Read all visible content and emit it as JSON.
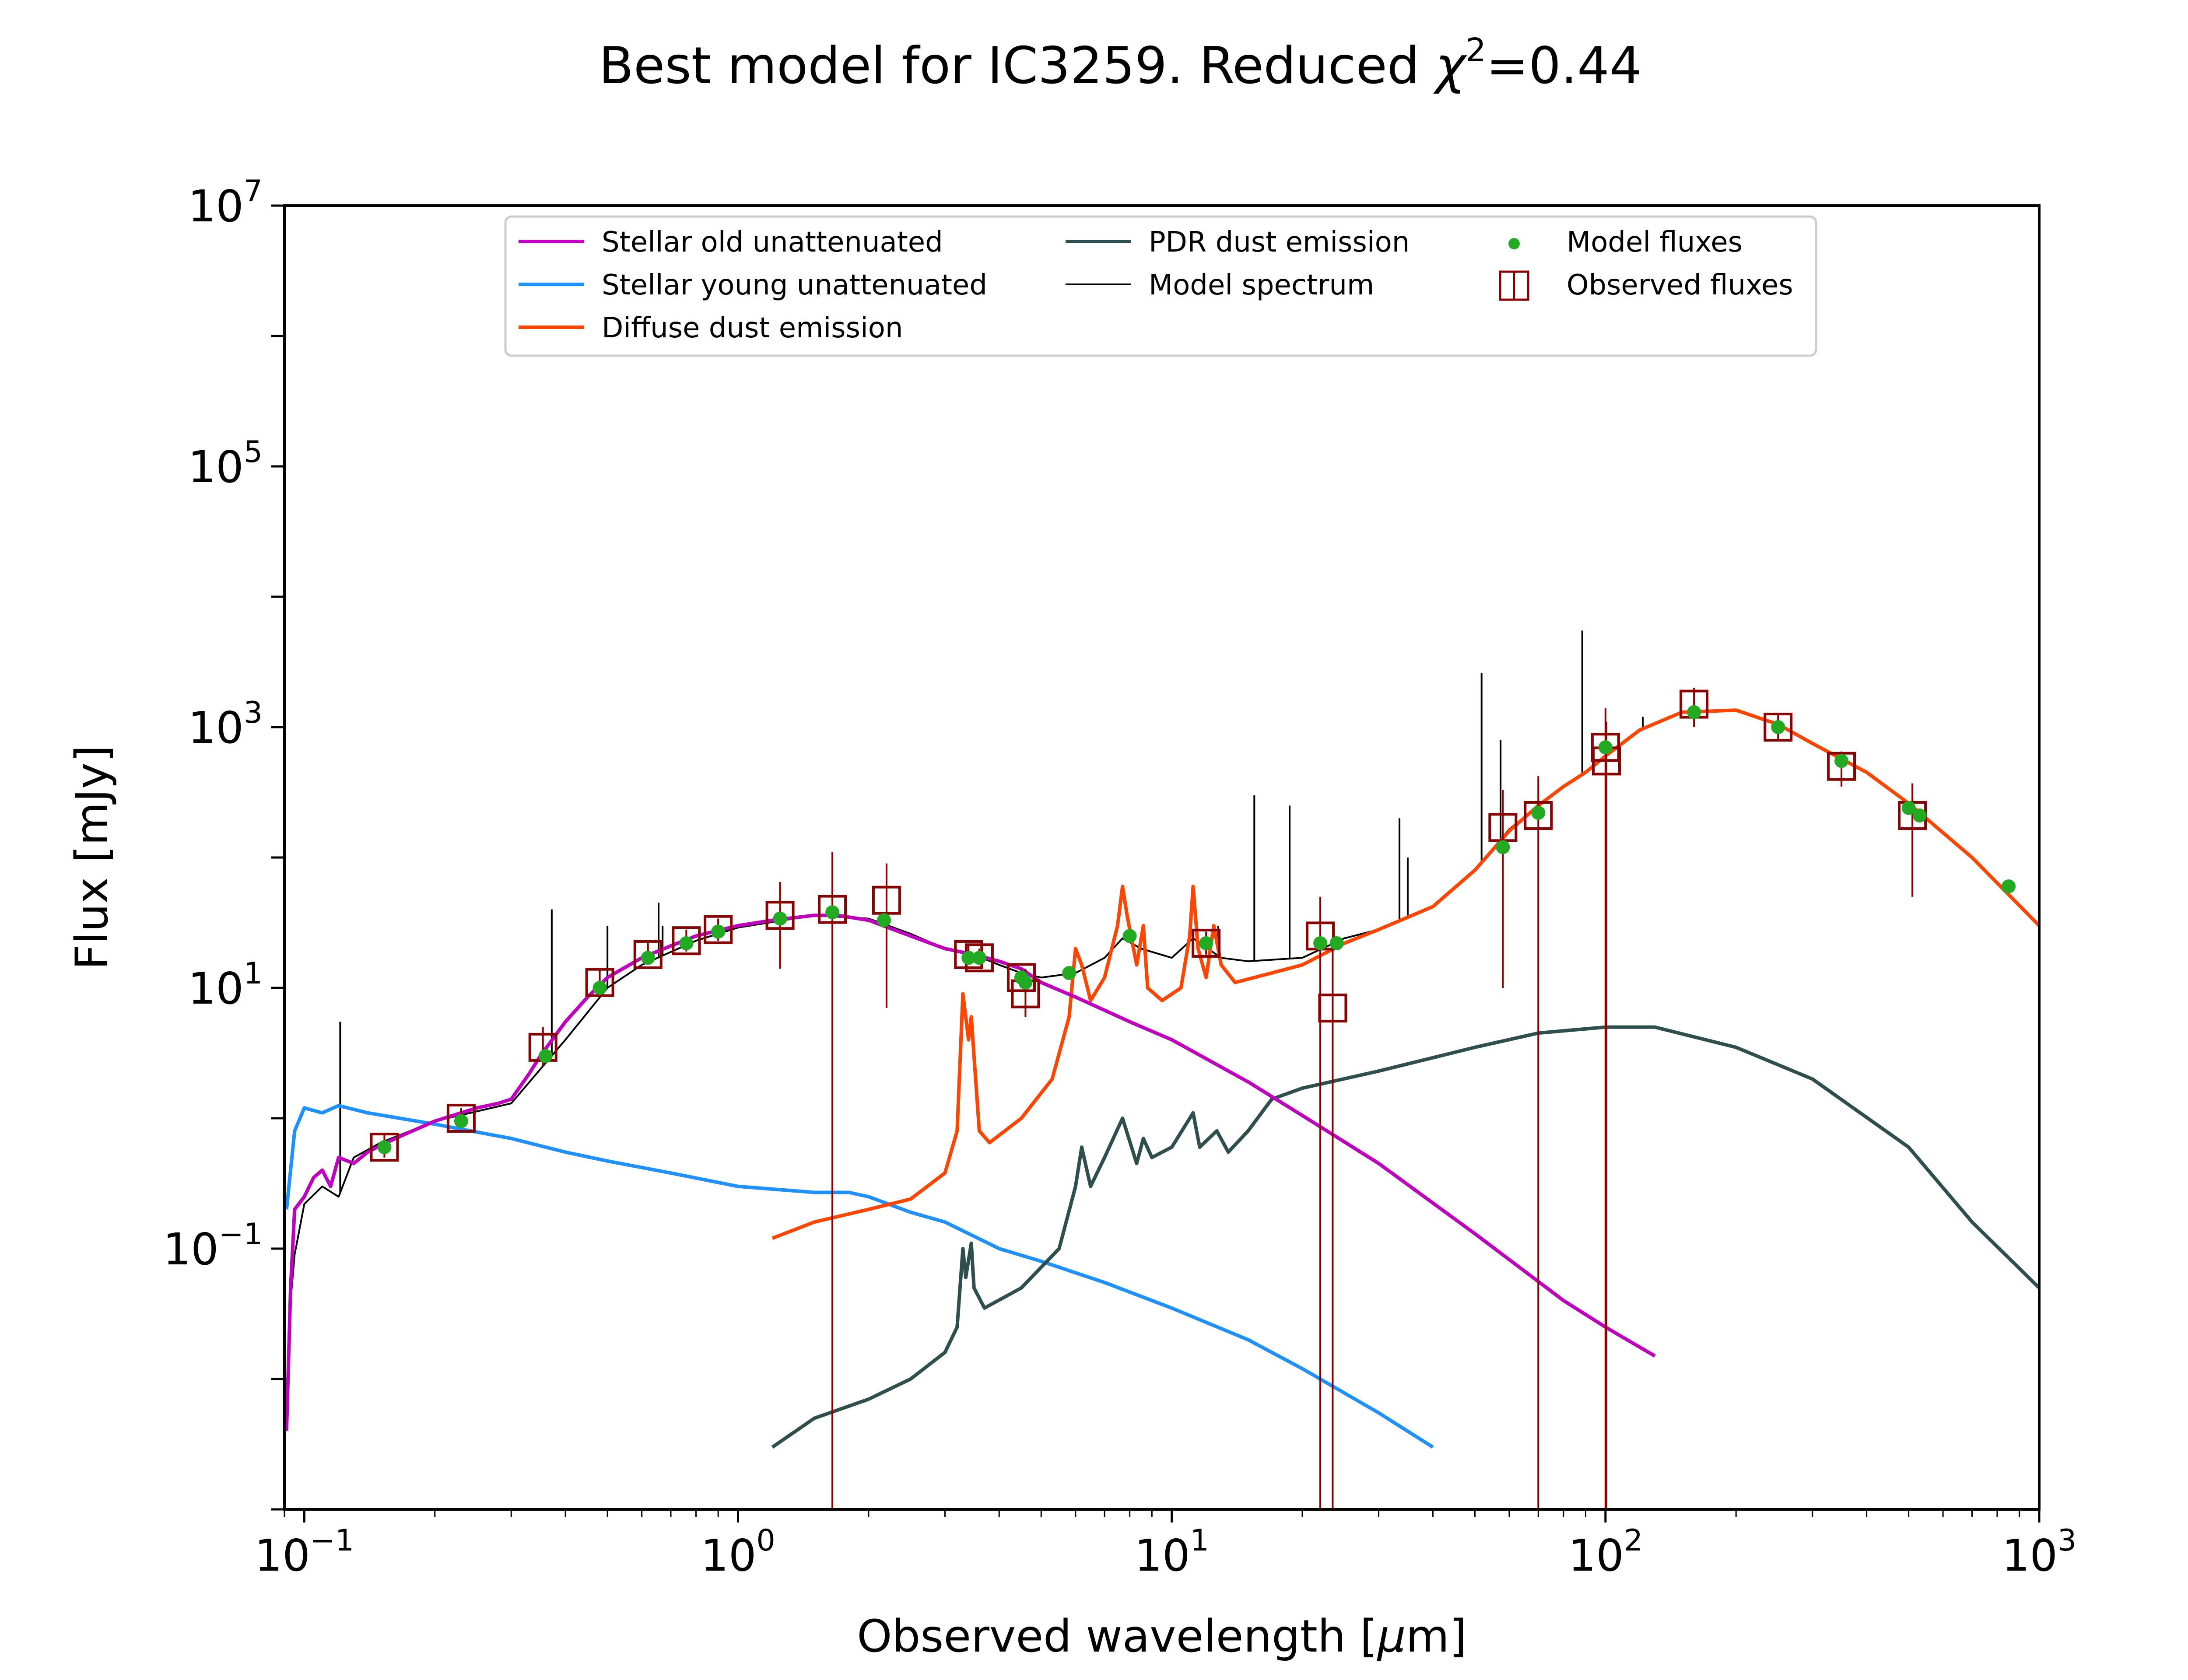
{
  "chart_data": {
    "type": "line",
    "title": "Best model for IC3259. Reduced χ²=0.44",
    "title_main": "Best model for IC3259. Reduced ",
    "title_chi": "χ",
    "title_exp": "2",
    "title_end": "=0.44",
    "xlabel_pre": "Observed wavelength [",
    "xlabel_mu": "μ",
    "xlabel_post": "m]",
    "ylabel": "Flux [mJy]",
    "x_scale": "log",
    "y_scale": "log",
    "xlim": [
      0.09,
      1000
    ],
    "ylim": [
      0.001,
      10000000
    ],
    "grid": false,
    "legend_position": "upper-center",
    "x_ticks": [
      {
        "value": 0.1,
        "base": "10",
        "exp": "−1"
      },
      {
        "value": 1,
        "base": "10",
        "exp": "0"
      },
      {
        "value": 10,
        "base": "10",
        "exp": "1"
      },
      {
        "value": 100,
        "base": "10",
        "exp": "2"
      },
      {
        "value": 1000,
        "base": "10",
        "exp": "3"
      }
    ],
    "y_ticks": [
      {
        "value": 0.1,
        "base": "10",
        "exp": "−1"
      },
      {
        "value": 10,
        "base": "10",
        "exp": "1"
      },
      {
        "value": 1000,
        "base": "10",
        "exp": "3"
      },
      {
        "value": 100000,
        "base": "10",
        "exp": "5"
      },
      {
        "value": 10000000,
        "base": "10",
        "exp": "7"
      }
    ],
    "series": [
      {
        "name": "Stellar old unattenuated",
        "color": "#bf00bf",
        "points": [
          [
            0.091,
            0.004
          ],
          [
            0.093,
            0.05
          ],
          [
            0.095,
            0.2
          ],
          [
            0.1,
            0.25
          ],
          [
            0.105,
            0.35
          ],
          [
            0.11,
            0.4
          ],
          [
            0.115,
            0.3
          ],
          [
            0.12,
            0.5
          ],
          [
            0.13,
            0.45
          ],
          [
            0.14,
            0.55
          ],
          [
            0.15,
            0.62
          ],
          [
            0.17,
            0.75
          ],
          [
            0.2,
            0.95
          ],
          [
            0.25,
            1.2
          ],
          [
            0.28,
            1.3
          ],
          [
            0.3,
            1.4
          ],
          [
            0.33,
            2.2
          ],
          [
            0.35,
            3.0
          ],
          [
            0.4,
            5.5
          ],
          [
            0.45,
            8.5
          ],
          [
            0.5,
            12
          ],
          [
            0.6,
            17
          ],
          [
            0.7,
            21
          ],
          [
            0.8,
            25
          ],
          [
            1.0,
            30
          ],
          [
            1.2,
            33
          ],
          [
            1.5,
            36
          ],
          [
            1.7,
            36
          ],
          [
            2.0,
            33
          ],
          [
            2.5,
            25
          ],
          [
            3.0,
            20
          ],
          [
            3.5,
            18
          ],
          [
            4.0,
            16
          ],
          [
            4.5,
            14
          ],
          [
            5.0,
            11
          ],
          [
            6.0,
            8.5
          ],
          [
            8.0,
            5.5
          ],
          [
            10.0,
            4
          ],
          [
            15.0,
            1.9
          ],
          [
            20.0,
            1.05
          ],
          [
            30.0,
            0.45
          ],
          [
            50.0,
            0.13
          ],
          [
            80.0,
            0.04
          ],
          [
            100.0,
            0.025
          ],
          [
            130.0,
            0.015
          ]
        ]
      },
      {
        "name": "Stellar young unattenuated",
        "color": "#1e90ff",
        "points": [
          [
            0.091,
            0.2
          ],
          [
            0.095,
            0.8
          ],
          [
            0.1,
            1.2
          ],
          [
            0.11,
            1.1
          ],
          [
            0.12,
            1.25
          ],
          [
            0.14,
            1.1
          ],
          [
            0.2,
            0.9
          ],
          [
            0.3,
            0.7
          ],
          [
            0.4,
            0.55
          ],
          [
            0.5,
            0.47
          ],
          [
            0.7,
            0.38
          ],
          [
            1.0,
            0.3
          ],
          [
            1.5,
            0.27
          ],
          [
            1.8,
            0.27
          ],
          [
            2.0,
            0.25
          ],
          [
            2.5,
            0.19
          ],
          [
            3.0,
            0.16
          ],
          [
            4.0,
            0.1
          ],
          [
            5.0,
            0.08
          ],
          [
            7.0,
            0.055
          ],
          [
            10.0,
            0.035
          ],
          [
            15.0,
            0.02
          ],
          [
            20.0,
            0.012
          ],
          [
            30.0,
            0.0055
          ],
          [
            40.0,
            0.003
          ]
        ]
      },
      {
        "name": "Diffuse dust emission",
        "color": "#ff4500",
        "points": [
          [
            1.2,
            0.12
          ],
          [
            1.5,
            0.16
          ],
          [
            2.0,
            0.2
          ],
          [
            2.5,
            0.24
          ],
          [
            3.0,
            0.38
          ],
          [
            3.2,
            0.8
          ],
          [
            3.3,
            9
          ],
          [
            3.4,
            4
          ],
          [
            3.45,
            6
          ],
          [
            3.5,
            3
          ],
          [
            3.6,
            0.8
          ],
          [
            3.8,
            0.65
          ],
          [
            4.5,
            1.0
          ],
          [
            5.3,
            2.0
          ],
          [
            5.8,
            6
          ],
          [
            6.0,
            20
          ],
          [
            6.2,
            15
          ],
          [
            6.5,
            8
          ],
          [
            7.0,
            12
          ],
          [
            7.5,
            30
          ],
          [
            7.7,
            60
          ],
          [
            7.9,
            35
          ],
          [
            8.3,
            15
          ],
          [
            8.6,
            30
          ],
          [
            8.8,
            10
          ],
          [
            9.5,
            8
          ],
          [
            10.5,
            10
          ],
          [
            11.0,
            25
          ],
          [
            11.2,
            60
          ],
          [
            11.5,
            20
          ],
          [
            12.0,
            12
          ],
          [
            12.5,
            30
          ],
          [
            13.0,
            15
          ],
          [
            14.0,
            11
          ],
          [
            17.0,
            13
          ],
          [
            20.0,
            15
          ],
          [
            25.0,
            22
          ],
          [
            30.0,
            28
          ],
          [
            40.0,
            42
          ],
          [
            50.0,
            80
          ],
          [
            60.0,
            160
          ],
          [
            70.0,
            250
          ],
          [
            80.0,
            350
          ],
          [
            90.0,
            450
          ],
          [
            100.0,
            600
          ],
          [
            120.0,
            950
          ],
          [
            150.0,
            1300
          ],
          [
            200.0,
            1350
          ],
          [
            250.0,
            1050
          ],
          [
            300.0,
            750
          ],
          [
            400.0,
            450
          ],
          [
            500.0,
            260
          ],
          [
            700.0,
            100
          ],
          [
            1000.0,
            30
          ]
        ]
      },
      {
        "name": "PDR dust emission",
        "color": "#2f4f4f",
        "points": [
          [
            1.2,
            0.003
          ],
          [
            1.5,
            0.005
          ],
          [
            2.0,
            0.007
          ],
          [
            2.5,
            0.01
          ],
          [
            3.0,
            0.016
          ],
          [
            3.2,
            0.025
          ],
          [
            3.3,
            0.1
          ],
          [
            3.35,
            0.06
          ],
          [
            3.45,
            0.11
          ],
          [
            3.5,
            0.05
          ],
          [
            3.7,
            0.035
          ],
          [
            4.5,
            0.05
          ],
          [
            5.5,
            0.1
          ],
          [
            6.0,
            0.3
          ],
          [
            6.2,
            0.6
          ],
          [
            6.5,
            0.3
          ],
          [
            7.0,
            0.5
          ],
          [
            7.7,
            1.0
          ],
          [
            8.3,
            0.45
          ],
          [
            8.6,
            0.7
          ],
          [
            9.0,
            0.5
          ],
          [
            10.0,
            0.6
          ],
          [
            11.2,
            1.1
          ],
          [
            11.6,
            0.6
          ],
          [
            12.7,
            0.8
          ],
          [
            13.5,
            0.55
          ],
          [
            15.0,
            0.8
          ],
          [
            17.0,
            1.4
          ],
          [
            20.0,
            1.7
          ],
          [
            30.0,
            2.3
          ],
          [
            50.0,
            3.5
          ],
          [
            70.0,
            4.5
          ],
          [
            100.0,
            5.0
          ],
          [
            130.0,
            5.0
          ],
          [
            200.0,
            3.5
          ],
          [
            300.0,
            2.0
          ],
          [
            500.0,
            0.6
          ],
          [
            700.0,
            0.16
          ],
          [
            1000.0,
            0.05
          ]
        ]
      },
      {
        "name": "Model spectrum",
        "color": "#000000",
        "points": [
          [
            0.091,
            0.007
          ],
          [
            0.093,
            0.04
          ],
          [
            0.095,
            0.09
          ],
          [
            0.1,
            0.22
          ],
          [
            0.11,
            0.3
          ],
          [
            0.12,
            0.25
          ],
          [
            0.13,
            0.5
          ],
          [
            0.15,
            0.65
          ],
          [
            0.2,
            0.95
          ],
          [
            0.3,
            1.3
          ],
          [
            0.4,
            4
          ],
          [
            0.5,
            10
          ],
          [
            0.6,
            15
          ],
          [
            0.8,
            23
          ],
          [
            1.0,
            29
          ],
          [
            1.5,
            36
          ],
          [
            2.0,
            34
          ],
          [
            2.5,
            26
          ],
          [
            3.0,
            20
          ],
          [
            3.5,
            18
          ],
          [
            4.0,
            15
          ],
          [
            4.5,
            13
          ],
          [
            5.0,
            12
          ],
          [
            6.0,
            13
          ],
          [
            7.0,
            17
          ],
          [
            7.7,
            24
          ],
          [
            8.5,
            20
          ],
          [
            10.0,
            17
          ],
          [
            11.2,
            24
          ],
          [
            13.0,
            17
          ],
          [
            15.0,
            16
          ],
          [
            20.0,
            17
          ],
          [
            25.0,
            24
          ],
          [
            30.0,
            28
          ],
          [
            40.0,
            42
          ],
          [
            50.0,
            80
          ],
          [
            60.0,
            165
          ],
          [
            70.0,
            250
          ],
          [
            80.0,
            350
          ],
          [
            90.0,
            450
          ],
          [
            100.0,
            600
          ],
          [
            120.0,
            950
          ],
          [
            150.0,
            1300
          ],
          [
            200.0,
            1350
          ],
          [
            250.0,
            1050
          ],
          [
            300.0,
            750
          ],
          [
            400.0,
            450
          ],
          [
            500.0,
            260
          ],
          [
            700.0,
            100
          ],
          [
            1000.0,
            30
          ]
        ],
        "emission_lines": [
          [
            0.121,
            5.5
          ],
          [
            0.372,
            40
          ],
          [
            0.5,
            30
          ],
          [
            0.656,
            45
          ],
          [
            0.67,
            30
          ],
          [
            4.05,
            15
          ],
          [
            12.8,
            30
          ],
          [
            15.5,
            300
          ],
          [
            18.7,
            250
          ],
          [
            33.5,
            200
          ],
          [
            35.0,
            100
          ],
          [
            51.8,
            2600
          ],
          [
            57.3,
            800
          ],
          [
            88.4,
            5500
          ],
          [
            121.9,
            1200
          ]
        ]
      }
    ],
    "model_fluxes": {
      "name": "Model fluxes",
      "color": "#22aa22",
      "points": [
        [
          0.153,
          0.6
        ],
        [
          0.23,
          0.95
        ],
        [
          0.36,
          3.0
        ],
        [
          0.48,
          10
        ],
        [
          0.62,
          17
        ],
        [
          0.76,
          22
        ],
        [
          0.9,
          27
        ],
        [
          1.25,
          34
        ],
        [
          1.65,
          38
        ],
        [
          2.17,
          33
        ],
        [
          3.4,
          17
        ],
        [
          3.6,
          17
        ],
        [
          4.5,
          12
        ],
        [
          4.6,
          11
        ],
        [
          5.8,
          13
        ],
        [
          8.0,
          25
        ],
        [
          12.0,
          22
        ],
        [
          22.0,
          22
        ],
        [
          24.0,
          22
        ],
        [
          58.0,
          120
        ],
        [
          70.0,
          220
        ],
        [
          100.0,
          700
        ],
        [
          160.0,
          1300
        ],
        [
          250.0,
          1000
        ],
        [
          350.0,
          550
        ],
        [
          500.0,
          240
        ],
        [
          530.0,
          210
        ],
        [
          850.0,
          60
        ]
      ]
    },
    "observed_fluxes": {
      "name": "Observed fluxes",
      "color": "#8b0000",
      "points": [
        {
          "x": 0.153,
          "y": 0.6,
          "lo": 0.5,
          "hi": 0.75
        },
        {
          "x": 0.23,
          "y": 1.0,
          "lo": 0.85,
          "hi": 1.2
        },
        {
          "x": 0.355,
          "y": 3.5,
          "lo": 2.5,
          "hi": 5
        },
        {
          "x": 0.48,
          "y": 11,
          "lo": 9,
          "hi": 14
        },
        {
          "x": 0.62,
          "y": 18,
          "lo": 15,
          "hi": 22
        },
        {
          "x": 0.76,
          "y": 23,
          "lo": 19,
          "hi": 28
        },
        {
          "x": 0.9,
          "y": 28,
          "lo": 23,
          "hi": 34
        },
        {
          "x": 1.25,
          "y": 36,
          "lo": 14,
          "hi": 65
        },
        {
          "x": 1.65,
          "y": 40,
          "lo": 0.001,
          "hi": 110
        },
        {
          "x": 2.2,
          "y": 47,
          "lo": 7,
          "hi": 90
        },
        {
          "x": 3.4,
          "y": 18,
          "lo": 15,
          "hi": 21
        },
        {
          "x": 3.6,
          "y": 17,
          "lo": 15,
          "hi": 20
        },
        {
          "x": 4.5,
          "y": 12,
          "lo": 10,
          "hi": 14
        },
        {
          "x": 4.6,
          "y": 9,
          "lo": 6,
          "hi": 14
        },
        {
          "x": 12.0,
          "y": 22,
          "lo": 18,
          "hi": 27
        },
        {
          "x": 22.0,
          "y": 25,
          "lo": 0.001,
          "hi": 50
        },
        {
          "x": 23.5,
          "y": 7,
          "lo": 0.001,
          "hi": 20
        },
        {
          "x": 58.0,
          "y": 170,
          "lo": 10,
          "hi": 330
        },
        {
          "x": 70.0,
          "y": 210,
          "lo": 0.001,
          "hi": 420
        },
        {
          "x": 100.0,
          "y": 700,
          "lo": 0.001,
          "hi": 1400
        },
        {
          "x": 100.5,
          "y": 550,
          "lo": 0.001,
          "hi": 1100
        },
        {
          "x": 160.0,
          "y": 1500,
          "lo": 1000,
          "hi": 2000
        },
        {
          "x": 250.0,
          "y": 1000,
          "lo": 800,
          "hi": 1250
        },
        {
          "x": 350.0,
          "y": 500,
          "lo": 350,
          "hi": 650
        },
        {
          "x": 510.0,
          "y": 210,
          "lo": 50,
          "hi": 370
        }
      ]
    }
  }
}
